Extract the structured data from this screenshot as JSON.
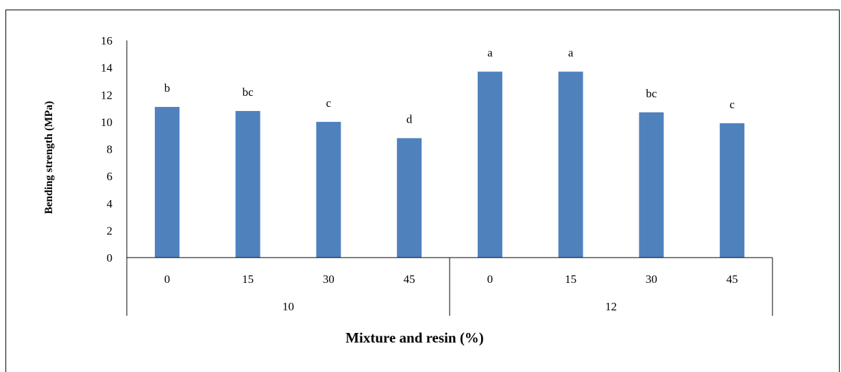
{
  "chart_data": {
    "type": "bar",
    "xlabel": "Mixture and resin (%)",
    "ylabel": "Bending strength (MPa)",
    "ylim": [
      0,
      16
    ],
    "y_ticks": [
      "0",
      "2",
      "4",
      "6",
      "8",
      "10",
      "12",
      "14",
      "16"
    ],
    "grid": false,
    "legend": "none",
    "bar_color": "#4f81bd",
    "groups": [
      {
        "label": "10",
        "categories": [
          "0",
          "15",
          "30",
          "45"
        ]
      },
      {
        "label": "12",
        "categories": [
          "0",
          "15",
          "30",
          "45"
        ]
      }
    ],
    "categories": [
      "0",
      "15",
      "30",
      "45",
      "0",
      "15",
      "30",
      "45"
    ],
    "values": [
      11.1,
      10.8,
      10.0,
      8.8,
      13.7,
      13.7,
      10.7,
      9.9
    ],
    "data_labels": [
      "b",
      "bc",
      "c",
      "d",
      "a",
      "a",
      "bc",
      "c"
    ]
  }
}
